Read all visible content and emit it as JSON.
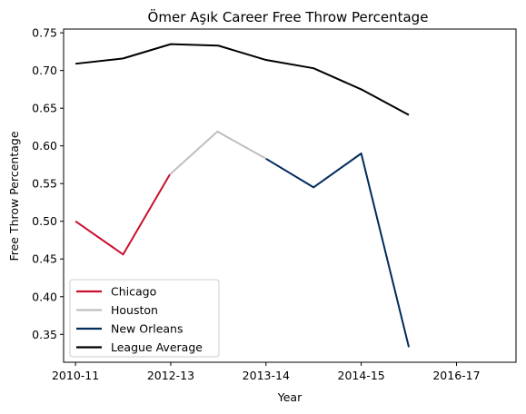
{
  "chart_data": {
    "type": "line",
    "title": "Ömer Aşık Career Free Throw Percentage",
    "xlabel": "Year",
    "ylabel": "Free Throw Percentage",
    "x_tick_labels": [
      "2010-11",
      "2012-13",
      "2013-14",
      "2014-15",
      "2016-17"
    ],
    "x_tick_index": [
      0,
      2,
      4,
      6,
      8
    ],
    "y_ticks": [
      0.35,
      0.4,
      0.45,
      0.5,
      0.55,
      0.6,
      0.65,
      0.7,
      0.75
    ],
    "y_tick_labels": [
      "0.35",
      "0.40",
      "0.45",
      "0.50",
      "0.55",
      "0.60",
      "0.65",
      "0.70",
      "0.75"
    ],
    "xlim": [
      -0.25,
      9.25
    ],
    "ylim": [
      0.313,
      0.755
    ],
    "grid": false,
    "legend_position": "lower-left",
    "series": [
      {
        "name": "Chicago",
        "color": "#c8102e",
        "points": [
          [
            0,
            0.5
          ],
          [
            1,
            0.456
          ],
          [
            1.98,
            0.562
          ]
        ]
      },
      {
        "name": "Houston",
        "color": "#bfbfbf",
        "points": [
          [
            1.98,
            0.562
          ],
          [
            2.98,
            0.619
          ],
          [
            4.0,
            0.583
          ]
        ]
      },
      {
        "name": "New Orleans",
        "color": "#002b5c",
        "points": [
          [
            4.0,
            0.583
          ],
          [
            5.0,
            0.545
          ],
          [
            6.0,
            0.59
          ],
          [
            7.0,
            0.333
          ]
        ]
      },
      {
        "name": "League Average",
        "color": "#000000",
        "points": [
          [
            0,
            0.709
          ],
          [
            1,
            0.716
          ],
          [
            2,
            0.735
          ],
          [
            3,
            0.733
          ],
          [
            4,
            0.714
          ],
          [
            5,
            0.703
          ],
          [
            6,
            0.675
          ],
          [
            7,
            0.641
          ]
        ]
      }
    ]
  }
}
